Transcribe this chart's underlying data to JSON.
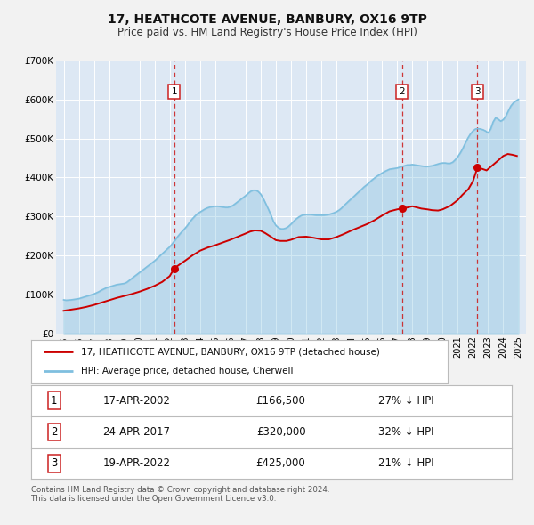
{
  "title": "17, HEATHCOTE AVENUE, BANBURY, OX16 9TP",
  "subtitle": "Price paid vs. HM Land Registry's House Price Index (HPI)",
  "background_color": "#f2f2f2",
  "plot_bg_color": "#dde8f4",
  "legend_label_red": "17, HEATHCOTE AVENUE, BANBURY, OX16 9TP (detached house)",
  "legend_label_blue": "HPI: Average price, detached house, Cherwell",
  "footer": "Contains HM Land Registry data © Crown copyright and database right 2024.\nThis data is licensed under the Open Government Licence v3.0.",
  "transactions": [
    {
      "num": 1,
      "date": "17-APR-2002",
      "year": 2002.29,
      "price": 166500,
      "hpi_pct": "27% ↓ HPI"
    },
    {
      "num": 2,
      "date": "24-APR-2017",
      "year": 2017.31,
      "price": 320000,
      "hpi_pct": "32% ↓ HPI"
    },
    {
      "num": 3,
      "date": "19-APR-2022",
      "year": 2022.3,
      "price": 425000,
      "hpi_pct": "21% ↓ HPI"
    }
  ],
  "hpi_color": "#7fbfdf",
  "hpi_fill_alpha": 0.35,
  "price_color": "#cc0000",
  "marker_color": "#cc0000",
  "vline_color": "#cc2222",
  "ylim": [
    0,
    700000
  ],
  "yticks": [
    0,
    100000,
    200000,
    300000,
    400000,
    500000,
    600000,
    700000
  ],
  "ytick_labels": [
    "£0",
    "£100K",
    "£200K",
    "£300K",
    "£400K",
    "£500K",
    "£600K",
    "£700K"
  ],
  "xlim_start": 1994.5,
  "xlim_end": 2025.5,
  "xtick_years": [
    1995,
    1996,
    1997,
    1998,
    1999,
    2000,
    2001,
    2002,
    2003,
    2004,
    2005,
    2006,
    2007,
    2008,
    2009,
    2010,
    2011,
    2012,
    2013,
    2014,
    2015,
    2016,
    2017,
    2018,
    2019,
    2020,
    2021,
    2022,
    2023,
    2024,
    2025
  ],
  "hpi_data": {
    "years": [
      1995.0,
      1995.17,
      1995.33,
      1995.5,
      1995.67,
      1995.83,
      1996.0,
      1996.17,
      1996.33,
      1996.5,
      1996.67,
      1996.83,
      1997.0,
      1997.17,
      1997.33,
      1997.5,
      1997.67,
      1997.83,
      1998.0,
      1998.17,
      1998.33,
      1998.5,
      1998.67,
      1998.83,
      1999.0,
      1999.17,
      1999.33,
      1999.5,
      1999.67,
      1999.83,
      2000.0,
      2000.17,
      2000.33,
      2000.5,
      2000.67,
      2000.83,
      2001.0,
      2001.17,
      2001.33,
      2001.5,
      2001.67,
      2001.83,
      2002.0,
      2002.17,
      2002.33,
      2002.5,
      2002.67,
      2002.83,
      2003.0,
      2003.17,
      2003.33,
      2003.5,
      2003.67,
      2003.83,
      2004.0,
      2004.17,
      2004.33,
      2004.5,
      2004.67,
      2004.83,
      2005.0,
      2005.17,
      2005.33,
      2005.5,
      2005.67,
      2005.83,
      2006.0,
      2006.17,
      2006.33,
      2006.5,
      2006.67,
      2006.83,
      2007.0,
      2007.17,
      2007.33,
      2007.5,
      2007.67,
      2007.83,
      2008.0,
      2008.17,
      2008.33,
      2008.5,
      2008.67,
      2008.83,
      2009.0,
      2009.17,
      2009.33,
      2009.5,
      2009.67,
      2009.83,
      2010.0,
      2010.17,
      2010.33,
      2010.5,
      2010.67,
      2010.83,
      2011.0,
      2011.17,
      2011.33,
      2011.5,
      2011.67,
      2011.83,
      2012.0,
      2012.17,
      2012.33,
      2012.5,
      2012.67,
      2012.83,
      2013.0,
      2013.17,
      2013.33,
      2013.5,
      2013.67,
      2013.83,
      2014.0,
      2014.17,
      2014.33,
      2014.5,
      2014.67,
      2014.83,
      2015.0,
      2015.17,
      2015.33,
      2015.5,
      2015.67,
      2015.83,
      2016.0,
      2016.17,
      2016.33,
      2016.5,
      2016.67,
      2016.83,
      2017.0,
      2017.17,
      2017.33,
      2017.5,
      2017.67,
      2017.83,
      2018.0,
      2018.17,
      2018.33,
      2018.5,
      2018.67,
      2018.83,
      2019.0,
      2019.17,
      2019.33,
      2019.5,
      2019.67,
      2019.83,
      2020.0,
      2020.17,
      2020.33,
      2020.5,
      2020.67,
      2020.83,
      2021.0,
      2021.17,
      2021.33,
      2021.5,
      2021.67,
      2021.83,
      2022.0,
      2022.17,
      2022.33,
      2022.5,
      2022.67,
      2022.83,
      2023.0,
      2023.17,
      2023.33,
      2023.5,
      2023.67,
      2023.83,
      2024.0,
      2024.17,
      2024.33,
      2024.5,
      2024.67,
      2024.83,
      2025.0
    ],
    "values": [
      86000,
      85000,
      85500,
      86000,
      87000,
      88000,
      89000,
      91000,
      93000,
      95000,
      97000,
      99000,
      101000,
      104000,
      107000,
      111000,
      114000,
      117000,
      119000,
      121000,
      123000,
      125000,
      126000,
      127000,
      128000,
      131000,
      136000,
      141000,
      146000,
      151000,
      156000,
      161000,
      166000,
      171000,
      176000,
      181000,
      186000,
      192000,
      198000,
      204000,
      210000,
      216000,
      222000,
      230000,
      238000,
      247000,
      255000,
      262000,
      269000,
      277000,
      286000,
      294000,
      301000,
      307000,
      311000,
      315000,
      319000,
      322000,
      324000,
      325000,
      326000,
      326000,
      325000,
      324000,
      323000,
      323000,
      325000,
      328000,
      333000,
      338000,
      343000,
      348000,
      353000,
      359000,
      364000,
      367000,
      367000,
      364000,
      357000,
      346000,
      333000,
      319000,
      304000,
      288000,
      277000,
      271000,
      268000,
      268000,
      270000,
      274000,
      280000,
      287000,
      293000,
      298000,
      302000,
      304000,
      305000,
      305000,
      305000,
      304000,
      303000,
      303000,
      303000,
      303000,
      304000,
      305000,
      307000,
      309000,
      312000,
      316000,
      321000,
      328000,
      334000,
      340000,
      346000,
      352000,
      358000,
      364000,
      370000,
      376000,
      381000,
      387000,
      393000,
      398000,
      403000,
      407000,
      411000,
      415000,
      418000,
      421000,
      422000,
      423000,
      424000,
      426000,
      428000,
      430000,
      432000,
      432000,
      433000,
      432000,
      431000,
      430000,
      429000,
      428000,
      428000,
      429000,
      430000,
      432000,
      434000,
      436000,
      437000,
      437000,
      436000,
      436000,
      439000,
      445000,
      453000,
      463000,
      474000,
      488000,
      501000,
      511000,
      519000,
      524000,
      525000,
      524000,
      522000,
      519000,
      514000,
      524000,
      542000,
      553000,
      549000,
      544000,
      548000,
      557000,
      570000,
      583000,
      591000,
      596000,
      600000
    ]
  },
  "price_data": {
    "years": [
      1995.0,
      1995.5,
      1996.0,
      1996.5,
      1997.0,
      1997.5,
      1998.0,
      1998.5,
      1999.0,
      1999.5,
      2000.0,
      2000.5,
      2001.0,
      2001.5,
      2002.0,
      2002.29,
      2002.7,
      2003.0,
      2003.5,
      2004.0,
      2004.5,
      2005.0,
      2005.5,
      2006.0,
      2006.5,
      2007.0,
      2007.3,
      2007.6,
      2008.0,
      2008.3,
      2008.7,
      2009.0,
      2009.3,
      2009.7,
      2010.0,
      2010.5,
      2011.0,
      2011.5,
      2012.0,
      2012.5,
      2013.0,
      2013.5,
      2014.0,
      2014.5,
      2015.0,
      2015.5,
      2016.0,
      2016.5,
      2017.0,
      2017.31,
      2017.7,
      2018.0,
      2018.3,
      2018.6,
      2019.0,
      2019.3,
      2019.7,
      2020.0,
      2020.5,
      2021.0,
      2021.3,
      2021.7,
      2022.0,
      2022.3,
      2022.6,
      2022.9,
      2023.2,
      2023.5,
      2023.8,
      2024.0,
      2024.3,
      2024.6,
      2024.9
    ],
    "values": [
      58000,
      61000,
      64000,
      68000,
      73000,
      79000,
      85000,
      91000,
      96000,
      101000,
      107000,
      114000,
      122000,
      132000,
      147000,
      166500,
      178000,
      186000,
      200000,
      212000,
      220000,
      226000,
      233000,
      240000,
      248000,
      256000,
      261000,
      264000,
      263000,
      257000,
      247000,
      239000,
      237000,
      237000,
      240000,
      247000,
      248000,
      245000,
      241000,
      241000,
      247000,
      255000,
      264000,
      272000,
      280000,
      290000,
      302000,
      313000,
      318000,
      320000,
      323000,
      326000,
      323000,
      320000,
      318000,
      316000,
      315000,
      318000,
      327000,
      342000,
      355000,
      370000,
      390000,
      425000,
      422000,
      418000,
      428000,
      438000,
      448000,
      455000,
      460000,
      458000,
      455000
    ]
  }
}
